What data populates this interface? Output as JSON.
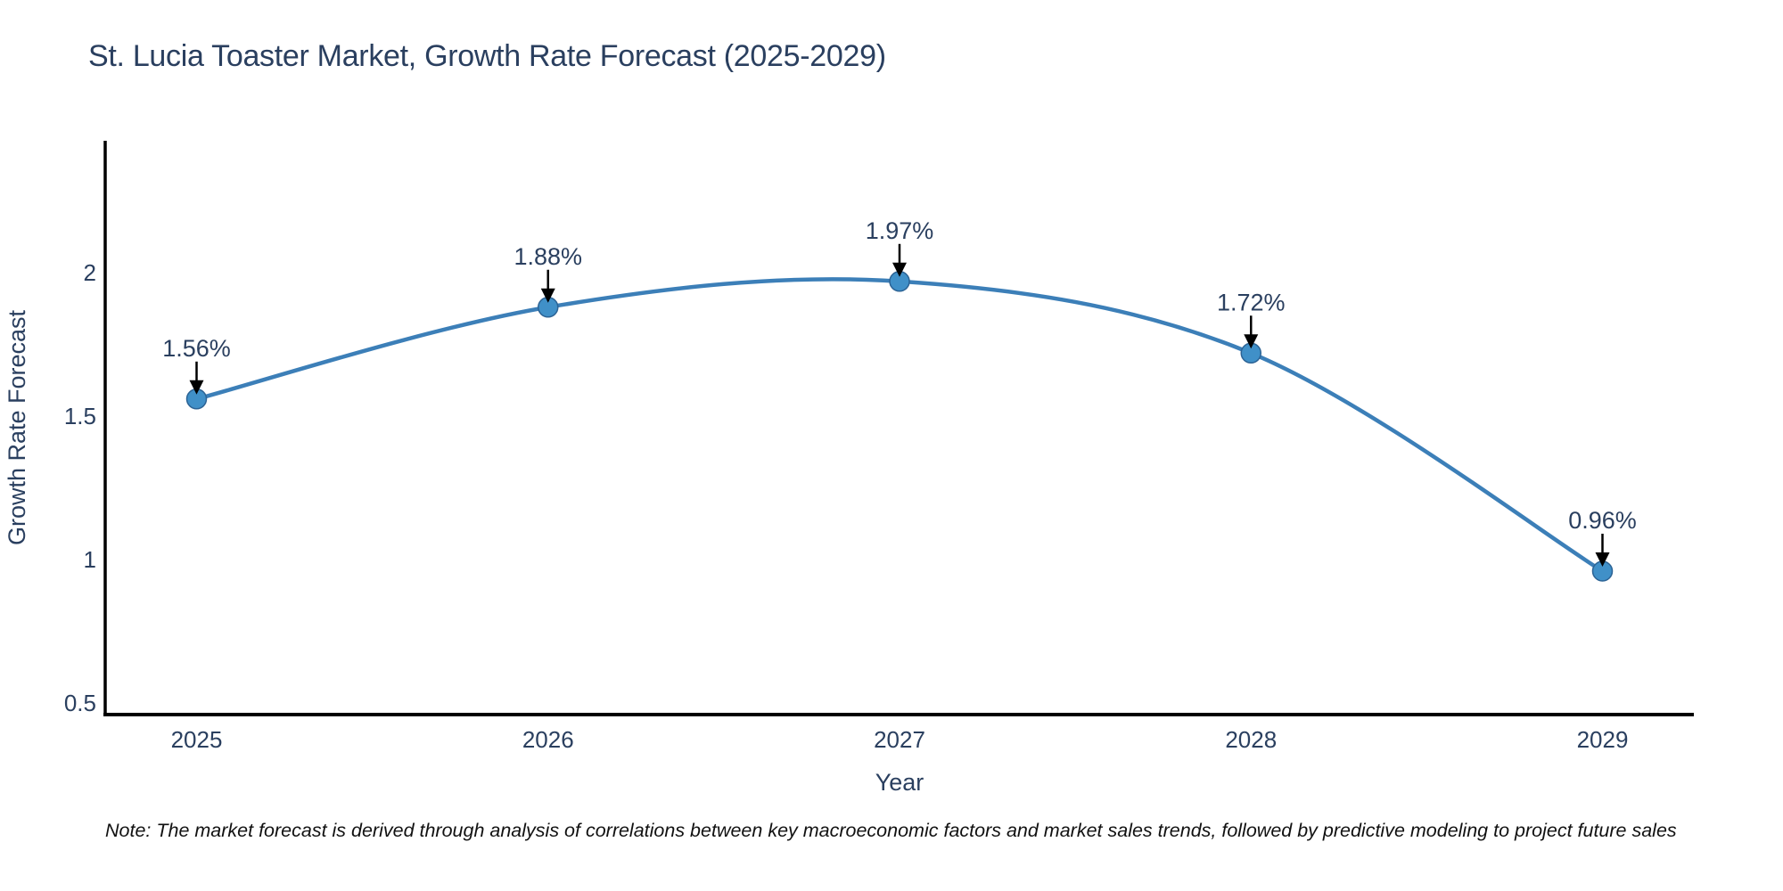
{
  "title": "St. Lucia Toaster Market, Growth Rate Forecast (2025-2029)",
  "note": "Note: The market forecast is derived through analysis of correlations between key macroeconomic factors and market sales trends, followed by predictive modeling to project future sales",
  "chart_data": {
    "type": "line",
    "title": "St. Lucia Toaster Market, Growth Rate Forecast (2025-2029)",
    "x": [
      2025,
      2026,
      2027,
      2028,
      2029
    ],
    "values": [
      1.56,
      1.88,
      1.97,
      1.72,
      0.96
    ],
    "point_labels": [
      "1.56%",
      "1.88%",
      "1.97%",
      "1.72%",
      "0.96%"
    ],
    "xlabel": "Year",
    "ylabel": "Growth Rate Forecast",
    "xticks": [
      "2025",
      "2026",
      "2027",
      "2028",
      "2029"
    ],
    "yticks": [
      "0.5",
      "1",
      "1.5",
      "2"
    ],
    "ytick_values": [
      0.5,
      1,
      1.5,
      2
    ],
    "xlim": [
      2024.74,
      2029.26
    ],
    "ylim": [
      0.46,
      2.46
    ],
    "line_shape": "spline",
    "grid": false,
    "legend": "none",
    "annotations": "value labels with black arrows pointing down at each marker",
    "colors": {
      "line": "#3c7fb8",
      "marker": "#4090c8",
      "marker_edge": "#2c6395",
      "text": "#2a3f5f",
      "axis": "#000000",
      "arrow": "#000000",
      "note_text": "#111111",
      "background": "#ffffff"
    },
    "marker_size_px": 22
  }
}
